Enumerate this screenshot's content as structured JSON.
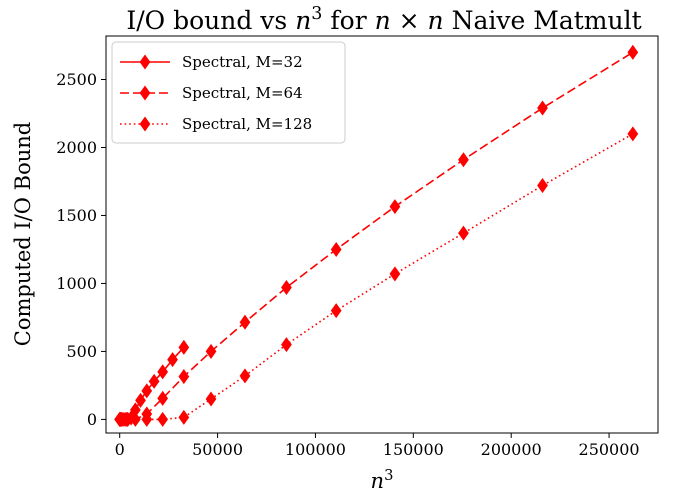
{
  "chart_data": {
    "type": "line",
    "title_parts": [
      {
        "text": "I/O bound vs ",
        "style": "normal"
      },
      {
        "text": "n",
        "style": "italic"
      },
      {
        "text": "3",
        "style": "sup"
      },
      {
        "text": " for ",
        "style": "normal"
      },
      {
        "text": "n",
        "style": "italic"
      },
      {
        "text": " × ",
        "style": "normal"
      },
      {
        "text": "n",
        "style": "italic"
      },
      {
        "text": " Naive Matmult",
        "style": "normal"
      }
    ],
    "xlabel_parts": [
      {
        "text": "n",
        "style": "italic"
      },
      {
        "text": "3",
        "style": "sup"
      }
    ],
    "ylabel": "Computed I/O Bound",
    "xlim": [
      -7000,
      275000
    ],
    "ylim": [
      -100,
      2820
    ],
    "xticks": [
      0,
      50000,
      100000,
      150000,
      200000,
      250000
    ],
    "yticks": [
      0,
      500,
      1000,
      1500,
      2000,
      2500
    ],
    "grid": false,
    "legend_position": "top-left",
    "series": [
      {
        "name": "Spectral, M=32",
        "color": "#ff0000",
        "dash": "solid",
        "x": [
          0,
          64,
          216,
          512,
          1000,
          1728,
          2744,
          4096,
          5832,
          8000,
          10648,
          13824,
          17576,
          21952,
          27000,
          32768
        ],
        "y": [
          0,
          0,
          0,
          0,
          0,
          0,
          0,
          0,
          10,
          70,
          140,
          210,
          280,
          350,
          440,
          530
        ]
      },
      {
        "name": "Spectral, M=64",
        "color": "#ff0000",
        "dash": "dashed",
        "x": [
          0,
          1000,
          3375,
          8000,
          13824,
          21952,
          32768,
          46656,
          64000,
          85184,
          110592,
          140608,
          175616,
          216000,
          262144
        ],
        "y": [
          0,
          0,
          0,
          0,
          40,
          155,
          315,
          500,
          715,
          970,
          1250,
          1565,
          1910,
          2290,
          2700
        ]
      },
      {
        "name": "Spectral, M=128",
        "color": "#ff0000",
        "dash": "dotted",
        "x": [
          0,
          4096,
          13824,
          21952,
          32768,
          46656,
          64000,
          85184,
          110592,
          140608,
          175616,
          216000,
          262144
        ],
        "y": [
          0,
          0,
          0,
          0,
          15,
          150,
          320,
          550,
          800,
          1070,
          1370,
          1720,
          2100
        ]
      }
    ]
  }
}
